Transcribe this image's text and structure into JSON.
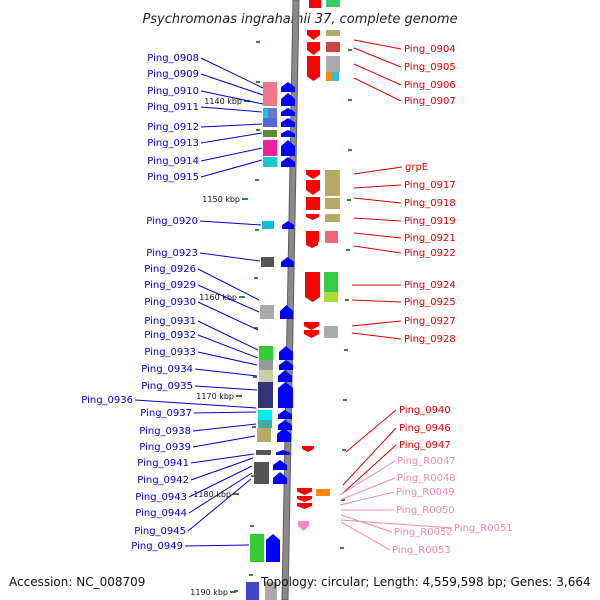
{
  "title": "Psychromonas ingrahamii 37, complete genome",
  "accession": "Accession: NC_008709",
  "topology": "Topology: circular; Length: 4,559,598 bp; Genes: 3,664",
  "ticks": [
    "1140 kbp",
    "1150 kbp",
    "1160 kbp",
    "1170 kbp",
    "1180 kbp",
    "1190 kbp"
  ],
  "colors": {
    "left_label": "#0000cc",
    "right_label": "#dd0000",
    "rna_label": "#ee88bb",
    "backbone": "#888888",
    "tick_mark": "#2e8b2e"
  },
  "left_labels": [
    "Ping_0908",
    "Ping_0909",
    "Ping_0910",
    "Ping_0911",
    "Ping_0912",
    "Ping_0913",
    "Ping_0914",
    "Ping_0915",
    "Ping_0920",
    "Ping_0923",
    "Ping_0926",
    "Ping_0929",
    "Ping_0930",
    "Ping_0931",
    "Ping_0932",
    "Ping_0933",
    "Ping_0934",
    "Ping_0935",
    "Ping_0936",
    "Ping_0937",
    "Ping_0938",
    "Ping_0939",
    "Ping_0941",
    "Ping_0942",
    "Ping_0943",
    "Ping_0944",
    "Ping_0945",
    "Ping_0949"
  ],
  "right_labels": [
    "Ping_0904",
    "Ping_0905",
    "Ping_0906",
    "Ping_0907",
    "grpE",
    "Ping_0917",
    "Ping_0918",
    "Ping_0919",
    "Ping_0921",
    "Ping_0922",
    "Ping_0924",
    "Ping_0925",
    "Ping_0927",
    "Ping_0928",
    "Ping_0940",
    "Ping_0946",
    "Ping_0947"
  ],
  "rna_labels": [
    "Ping_R0047",
    "Ping_R0048",
    "Ping_R0049",
    "Ping_R0050",
    "Ping_R0051",
    "Ping_R0052",
    "Ping_R0053"
  ]
}
